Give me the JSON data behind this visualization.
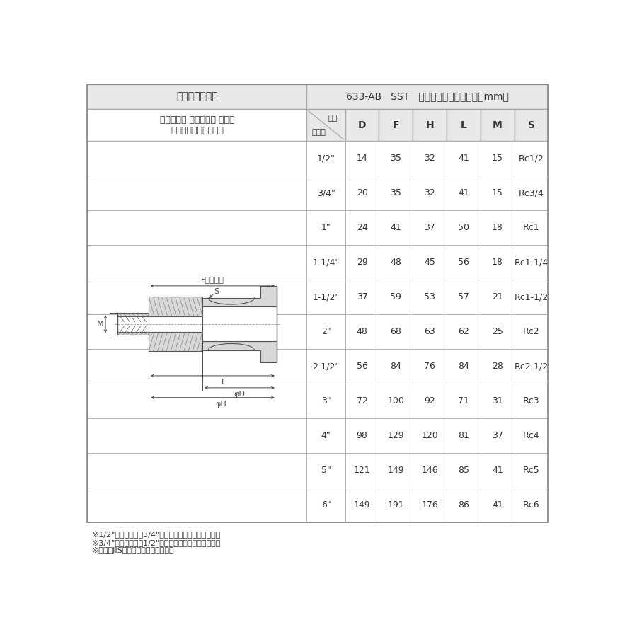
{
  "title_left": "カムアーム継手",
  "title_right": "633-AB   SST   サイズ別寸法表（単位：mm）",
  "subtitle_left1": "カムロック アダプター メネジ",
  "subtitle_left2": "ステンレススチール製",
  "col_header_diagonal_top": "位置",
  "col_header_diagonal_bottom": "サイズ",
  "columns": [
    "D",
    "F",
    "H",
    "L",
    "M",
    "S"
  ],
  "rows": [
    [
      "1/2\"",
      "14",
      "35",
      "32",
      "41",
      "15",
      "Rc1/2"
    ],
    [
      "3/4\"",
      "20",
      "35",
      "32",
      "41",
      "15",
      "Rc3/4"
    ],
    [
      "1\"",
      "24",
      "41",
      "37",
      "50",
      "18",
      "Rc1"
    ],
    [
      "1-1/4\"",
      "29",
      "48",
      "45",
      "56",
      "18",
      "Rc1-1/4"
    ],
    [
      "1-1/2\"",
      "37",
      "59",
      "53",
      "57",
      "21",
      "Rc1-1/2"
    ],
    [
      "2\"",
      "48",
      "68",
      "63",
      "62",
      "25",
      "Rc2"
    ],
    [
      "2-1/2\"",
      "56",
      "84",
      "76",
      "84",
      "28",
      "Rc2-1/2"
    ],
    [
      "3\"",
      "72",
      "100",
      "92",
      "71",
      "31",
      "Rc3"
    ],
    [
      "4\"",
      "98",
      "129",
      "120",
      "81",
      "37",
      "Rc4"
    ],
    [
      "5\"",
      "121",
      "149",
      "146",
      "85",
      "41",
      "Rc5"
    ],
    [
      "6\"",
      "149",
      "191",
      "176",
      "86",
      "41",
      "Rc6"
    ]
  ],
  "footnotes": [
    "※1/2\"アダプターは3/4\"カプラーにも接続できます。",
    "※3/4\"アダプターは1/2\"カプラーにも接続できます。",
    "※ネジはJIS管用テーパーネジです。"
  ],
  "bg_header": "#e8e8e8",
  "bg_white": "#ffffff",
  "border_color": "#aaaaaa",
  "text_color": "#333333",
  "dim_color": "#444444",
  "draw_color": "#555555",
  "hatch_color": "#888888",
  "fill_color": "#d8d8d8",
  "font_size_title": 10,
  "font_size_header": 9,
  "font_size_col": 10,
  "font_size_cell": 9,
  "font_size_footnote": 8,
  "font_size_dim": 8
}
